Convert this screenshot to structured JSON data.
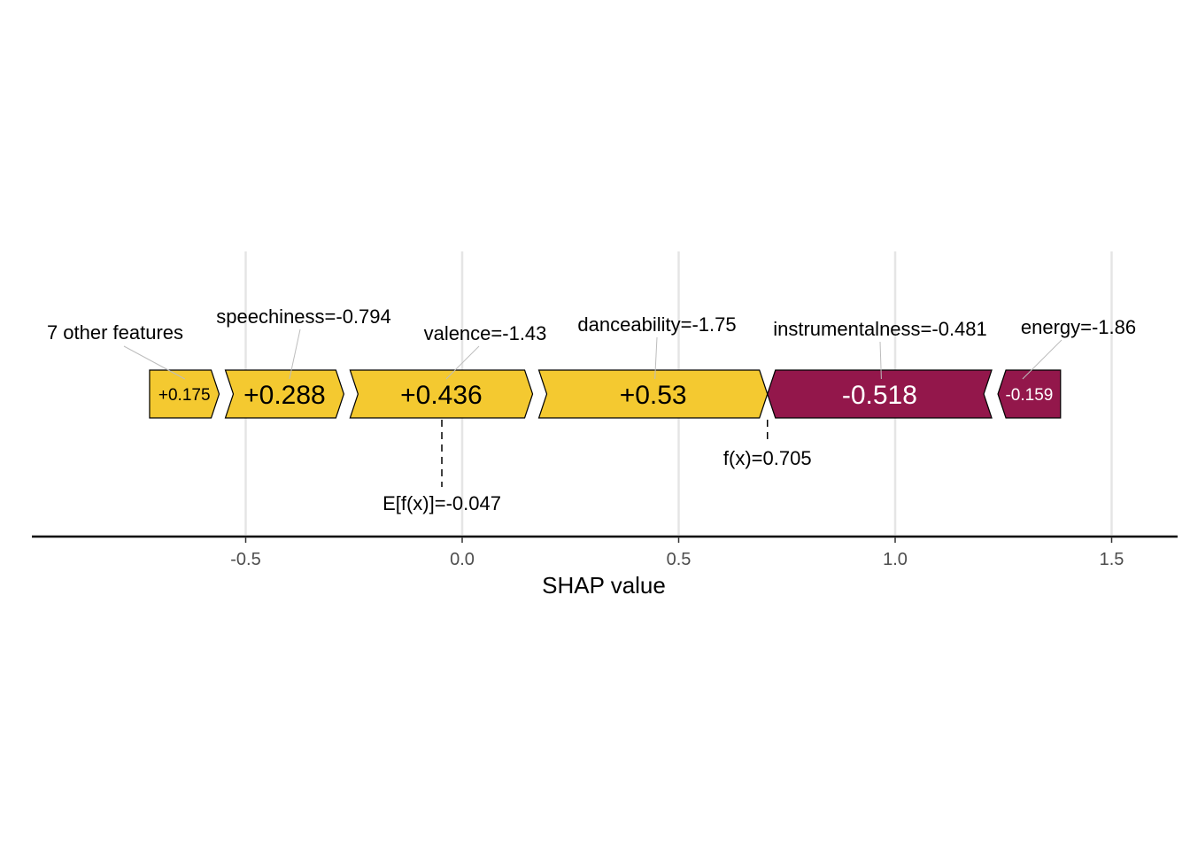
{
  "chart_data": {
    "type": "force",
    "xlabel": "SHAP value",
    "xlim": [
      -1.0,
      1.65
    ],
    "ticks": [
      {
        "value": -0.5,
        "label": "-0.5"
      },
      {
        "value": 0.0,
        "label": "0.0"
      },
      {
        "value": 0.5,
        "label": "0.5"
      },
      {
        "value": 1.0,
        "label": "1.0"
      },
      {
        "value": 1.5,
        "label": "1.5"
      }
    ],
    "grid": true,
    "base_value": -0.047,
    "base_label": "E[f(x)]=-0.047",
    "output_value": 0.705,
    "output_label": "f(x)=0.705",
    "positive_color": "#F4C930",
    "negative_color": "#93174B",
    "features": [
      {
        "name": "7 other features",
        "shap": 0.175,
        "value_label": "+0.175",
        "start": -0.722,
        "end": -0.547
      },
      {
        "name": "speechiness=-0.794",
        "shap": 0.288,
        "value_label": "+0.288",
        "start": -0.547,
        "end": -0.259
      },
      {
        "name": "valence=-1.43",
        "shap": 0.436,
        "value_label": "+0.436",
        "start": -0.259,
        "end": 0.177
      },
      {
        "name": "danceability=-1.75",
        "shap": 0.53,
        "value_label": "+0.53",
        "start": 0.177,
        "end": 0.705
      },
      {
        "name": "instrumentalness=-0.481",
        "shap": -0.518,
        "value_label": "-0.518",
        "start": 0.705,
        "end": 1.223
      },
      {
        "name": "energy=-1.86",
        "shap": -0.159,
        "value_label": "-0.159",
        "start": 1.223,
        "end": 1.382
      }
    ]
  }
}
